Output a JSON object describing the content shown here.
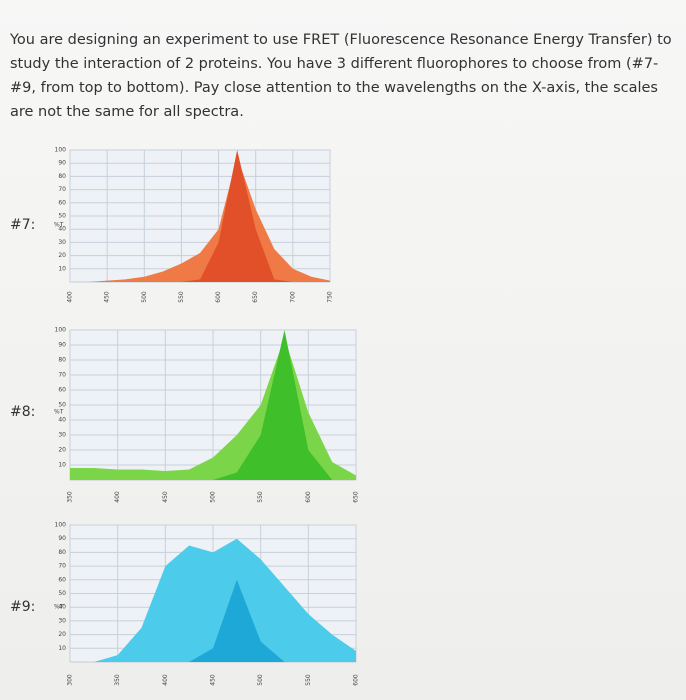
{
  "question": {
    "lines": [
      "You are designing an experiment to use FRET (Fluorescence Resonance Energy Transfer) to",
      "study the interaction of 2 proteins. You have 3 different fluorophores to choose from (#7-",
      "#9, from top to bottom). Pay close attention to the wavelengths on the X-axis, the scales",
      "are not the same for all spectra."
    ]
  },
  "chart_data": [
    {
      "type": "area",
      "label": "#7:",
      "y_label": "%T",
      "x": [
        400,
        425,
        450,
        475,
        500,
        525,
        550,
        575,
        600,
        625,
        650,
        675,
        700,
        725,
        750
      ],
      "xlim": [
        400,
        750
      ],
      "xticks": [
        400,
        450,
        500,
        550,
        600,
        650,
        700,
        750
      ],
      "ylim": [
        0,
        100
      ],
      "yticks": [
        10,
        20,
        30,
        40,
        50,
        60,
        70,
        80,
        90,
        100
      ],
      "grid": true,
      "series": [
        {
          "color": "#ef7a45",
          "values": [
            0,
            0,
            1,
            2,
            4,
            8,
            14,
            22,
            40,
            95,
            55,
            25,
            10,
            4,
            1
          ]
        },
        {
          "color": "#e2502a",
          "values": [
            0,
            0,
            0,
            0,
            0,
            0,
            0,
            2,
            30,
            100,
            40,
            2,
            0,
            0,
            0
          ]
        }
      ]
    },
    {
      "type": "area",
      "label": "#8:",
      "y_label": "%T",
      "x": [
        350,
        375,
        400,
        425,
        450,
        475,
        500,
        525,
        550,
        575,
        600,
        625,
        650
      ],
      "xlim": [
        350,
        650
      ],
      "xticks": [
        350,
        400,
        450,
        500,
        550,
        600,
        650
      ],
      "ylim": [
        0,
        100
      ],
      "yticks": [
        10,
        20,
        30,
        40,
        50,
        60,
        70,
        80,
        90,
        100
      ],
      "grid": true,
      "series": [
        {
          "color": "#7ad648",
          "values": [
            8,
            8,
            7,
            7,
            6,
            7,
            15,
            30,
            50,
            95,
            45,
            12,
            3
          ]
        },
        {
          "color": "#3fbf2a",
          "values": [
            0,
            0,
            0,
            0,
            0,
            0,
            0,
            5,
            30,
            100,
            20,
            0,
            0
          ]
        }
      ]
    },
    {
      "type": "area",
      "label": "#9:",
      "y_label": "%T",
      "x": [
        300,
        325,
        350,
        375,
        400,
        425,
        450,
        475,
        500,
        525,
        550,
        575,
        600
      ],
      "xlim": [
        300,
        600
      ],
      "xticks": [
        300,
        350,
        400,
        450,
        500,
        550,
        600
      ],
      "ylim": [
        0,
        100
      ],
      "yticks": [
        10,
        20,
        30,
        40,
        50,
        60,
        70,
        80,
        90,
        100
      ],
      "grid": true,
      "series": [
        {
          "color": "#4dcbea",
          "values": [
            0,
            0,
            5,
            25,
            70,
            85,
            80,
            90,
            75,
            55,
            35,
            20,
            8
          ]
        },
        {
          "color": "#1ea8d8",
          "values": [
            0,
            0,
            0,
            0,
            0,
            0,
            10,
            60,
            15,
            0,
            0,
            0,
            0
          ]
        }
      ]
    }
  ]
}
